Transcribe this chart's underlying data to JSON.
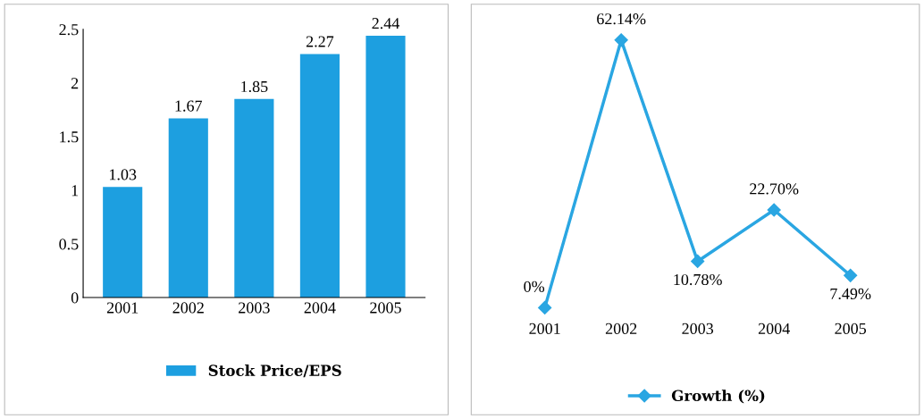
{
  "chart_data": [
    {
      "type": "bar",
      "categories": [
        "2001",
        "2002",
        "2003",
        "2004",
        "2005"
      ],
      "series": [
        {
          "name": "Stock Price/EPS",
          "color": "#1d9fe0",
          "values": [
            1.03,
            1.67,
            1.85,
            2.27,
            2.44
          ]
        }
      ],
      "ylim": [
        0,
        2.5
      ],
      "yticks": [
        0,
        0.5,
        1,
        1.5,
        2,
        2.5
      ],
      "data_labels": true,
      "grid": false,
      "legend": "bottom"
    },
    {
      "type": "line",
      "categories": [
        "2001",
        "2002",
        "2003",
        "2004",
        "2005"
      ],
      "series": [
        {
          "name": "Growth (%)",
          "color": "#2aa6e2",
          "values": [
            0,
            62.14,
            10.78,
            22.7,
            7.49
          ],
          "value_labels": [
            "0%",
            "62.14%",
            "10.78%",
            "22.70%",
            "7.49%"
          ]
        }
      ],
      "marker": "diamond",
      "tick_labels": "x",
      "grid": false,
      "legend": "bottom"
    }
  ]
}
